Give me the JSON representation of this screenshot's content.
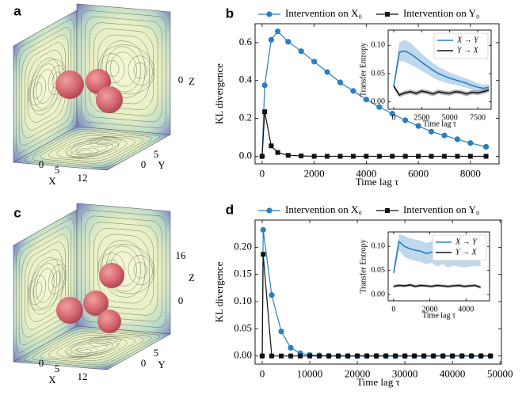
{
  "renders": [
    {
      "panel_label": "a",
      "axis_labels": {
        "x": "X",
        "y": "Y",
        "z": "Z"
      },
      "xticks": [
        0,
        5,
        12
      ],
      "yticks": [
        5,
        0
      ],
      "zticks": [
        0
      ]
    },
    {
      "panel_label": "c",
      "axis_labels": {
        "x": "X",
        "y": "Y",
        "z": "Z"
      },
      "xticks": [
        0,
        5,
        12
      ],
      "yticks": [
        5,
        0
      ],
      "zticks": [
        16,
        0
      ]
    }
  ],
  "chart_data": [
    {
      "type": "line",
      "panel_label": "b",
      "xlabel": "Time lag τ",
      "ylabel": "KL divergence",
      "legend": "top",
      "x": [
        0,
        100,
        350,
        600,
        1000,
        1500,
        2000,
        2500,
        3000,
        3500,
        4000,
        4500,
        5000,
        5500,
        6000,
        6500,
        7000,
        7500,
        8000,
        8600
      ],
      "series": [
        {
          "name": "Intervention on X₀",
          "color": "#2a7fc1",
          "marker": "circle",
          "values": [
            0,
            0.375,
            0.615,
            0.66,
            0.605,
            0.555,
            0.5,
            0.445,
            0.39,
            0.345,
            0.3,
            0.26,
            0.225,
            0.19,
            0.16,
            0.13,
            0.11,
            0.09,
            0.07,
            0.05
          ]
        },
        {
          "name": "Intervention on Y₀",
          "color": "#111111",
          "marker": "square",
          "values": [
            0,
            0.235,
            0.055,
            0.02,
            0.005,
            0.002,
            0,
            0,
            0,
            0,
            0,
            0,
            0,
            0,
            0,
            0,
            0,
            0,
            0,
            0
          ]
        }
      ],
      "xlim": [
        -270,
        9100
      ],
      "ylim": [
        -0.04,
        0.7
      ],
      "xticks": [
        0,
        2000,
        4000,
        6000,
        8000
      ],
      "yticks": [
        {
          "value": 0,
          "label": "0.0"
        },
        0.2,
        0.4,
        0.6
      ]
    },
    {
      "type": "line",
      "xlabel": "Time lag τ",
      "ylabel": "Transfer Entropy",
      "legend": "upper right",
      "x": [
        0,
        500,
        1000,
        1500,
        2000,
        2500,
        3000,
        3500,
        4000,
        4500,
        5000,
        5500,
        6000,
        6500,
        7000,
        7500,
        8000,
        8500
      ],
      "series": [
        {
          "name": "X → Y",
          "color": "#2a7fc1",
          "values": [
            0.028,
            0.088,
            0.09,
            0.085,
            0.078,
            0.07,
            0.063,
            0.056,
            0.05,
            0.046,
            0.042,
            0.039,
            0.036,
            0.033,
            0.029,
            0.026,
            0.024,
            0.026
          ],
          "upper": [
            0.031,
            0.105,
            0.11,
            0.104,
            0.095,
            0.085,
            0.077,
            0.069,
            0.062,
            0.057,
            0.052,
            0.048,
            0.045,
            0.041,
            0.037,
            0.033,
            0.03,
            0.032
          ],
          "lower": [
            0.025,
            0.072,
            0.071,
            0.066,
            0.061,
            0.055,
            0.049,
            0.043,
            0.038,
            0.035,
            0.032,
            0.03,
            0.027,
            0.025,
            0.021,
            0.019,
            0.018,
            0.02
          ]
        },
        {
          "name": "Y → X",
          "color": "#111111",
          "values": [
            0.028,
            0.012,
            0.016,
            0.018,
            0.015,
            0.019,
            0.017,
            0.014,
            0.018,
            0.016,
            0.015,
            0.018,
            0.017,
            0.014,
            0.017,
            0.016,
            0.018,
            0.021
          ],
          "upper": [
            0.031,
            0.016,
            0.02,
            0.022,
            0.019,
            0.023,
            0.021,
            0.018,
            0.022,
            0.02,
            0.019,
            0.022,
            0.021,
            0.018,
            0.021,
            0.02,
            0.022,
            0.025
          ],
          "lower": [
            0.025,
            0.008,
            0.012,
            0.014,
            0.011,
            0.015,
            0.013,
            0.01,
            0.014,
            0.012,
            0.011,
            0.014,
            0.013,
            0.01,
            0.013,
            0.012,
            0.014,
            0.017
          ]
        }
      ],
      "xlim": [
        -500,
        8700
      ],
      "ylim": [
        -0.013,
        0.127
      ],
      "xticks": [
        0,
        2500,
        5000,
        7500
      ],
      "yticks": [
        {
          "value": 0,
          "label": "0.00"
        },
        {
          "value": 0.05,
          "label": "0.05"
        },
        {
          "value": 0.1,
          "label": "0.10"
        }
      ]
    },
    {
      "type": "line",
      "panel_label": "d",
      "xlabel": "Time lag τ",
      "ylabel": "KL divergence",
      "legend": "top",
      "x": [
        0,
        200,
        2000,
        4000,
        6000,
        8000,
        10000,
        12000,
        14000,
        16000,
        18000,
        20000,
        22000,
        24000,
        26000,
        28000,
        30000,
        32000,
        34000,
        36000,
        38000,
        40000,
        42000,
        44000,
        46000,
        48000
      ],
      "series": [
        {
          "name": "Intervention on X₀",
          "color": "#2a7fc1",
          "marker": "circle",
          "values": [
            0,
            0.232,
            0.112,
            0.045,
            0.015,
            0.005,
            0.002,
            0.001,
            0,
            0,
            0,
            0,
            0,
            0,
            0,
            0,
            0,
            0,
            0,
            0,
            0,
            0,
            0,
            0,
            0,
            0
          ]
        },
        {
          "name": "Intervention on Y₀",
          "color": "#111111",
          "marker": "square",
          "values": [
            0,
            0.187,
            0,
            0,
            0,
            0,
            0,
            0,
            0,
            0,
            0,
            0,
            0,
            0,
            0,
            0,
            0,
            0,
            0,
            0,
            0,
            0,
            0,
            0,
            0,
            0
          ]
        }
      ],
      "xlim": [
        -1500,
        50300
      ],
      "ylim": [
        -0.015,
        0.25
      ],
      "xticks": [
        0,
        10000,
        20000,
        30000,
        40000,
        50000
      ],
      "yticks": [
        {
          "value": 0,
          "label": "0.00"
        },
        {
          "value": 0.05,
          "label": "0.05"
        },
        {
          "value": 0.1,
          "label": "0.10"
        },
        {
          "value": 0.15,
          "label": "0.15"
        },
        {
          "value": 0.2,
          "label": "0.20"
        }
      ]
    },
    {
      "type": "line",
      "xlabel": "Time lag τ",
      "ylabel": "Transfer Entropy",
      "legend": "upper right",
      "x": [
        0,
        300,
        600,
        900,
        1200,
        1500,
        1800,
        2100,
        2400,
        2700,
        3000,
        3300,
        3600,
        3900,
        4200,
        4500,
        4800
      ],
      "series": [
        {
          "name": "X → Y",
          "color": "#2a7fc1",
          "values": [
            0.045,
            0.11,
            0.1,
            0.095,
            0.092,
            0.09,
            0.085,
            0.088,
            0.08,
            0.085,
            0.078,
            0.082,
            0.08,
            0.078,
            0.08,
            0.082,
            0.08
          ],
          "upper": [
            0.052,
            0.125,
            0.122,
            0.117,
            0.114,
            0.112,
            0.107,
            0.11,
            0.102,
            0.107,
            0.1,
            0.104,
            0.102,
            0.1,
            0.102,
            0.104,
            0.102
          ],
          "lower": [
            0.038,
            0.092,
            0.078,
            0.073,
            0.07,
            0.068,
            0.063,
            0.066,
            0.058,
            0.063,
            0.056,
            0.06,
            0.058,
            0.056,
            0.058,
            0.06,
            0.058
          ]
        },
        {
          "name": "Y → X",
          "color": "#111111",
          "values": [
            0.017,
            0.019,
            0.018,
            0.02,
            0.017,
            0.019,
            0.018,
            0.017,
            0.019,
            0.018,
            0.017,
            0.018,
            0.019,
            0.017,
            0.018,
            0.019,
            0.015
          ],
          "upper": [
            0.02,
            0.022,
            0.021,
            0.023,
            0.02,
            0.022,
            0.021,
            0.02,
            0.022,
            0.021,
            0.02,
            0.021,
            0.022,
            0.02,
            0.021,
            0.022,
            0.018
          ],
          "lower": [
            0.014,
            0.016,
            0.015,
            0.017,
            0.014,
            0.016,
            0.015,
            0.014,
            0.016,
            0.015,
            0.014,
            0.015,
            0.016,
            0.014,
            0.015,
            0.016,
            0.012
          ]
        }
      ],
      "xlim": [
        -300,
        5300
      ],
      "ylim": [
        -0.013,
        0.13
      ],
      "xticks": [
        0,
        2000,
        4000
      ],
      "yticks": [
        {
          "value": 0,
          "label": "0.00"
        },
        {
          "value": 0.05,
          "label": "0.05"
        },
        {
          "value": 0.1,
          "label": "0.10"
        }
      ]
    }
  ]
}
